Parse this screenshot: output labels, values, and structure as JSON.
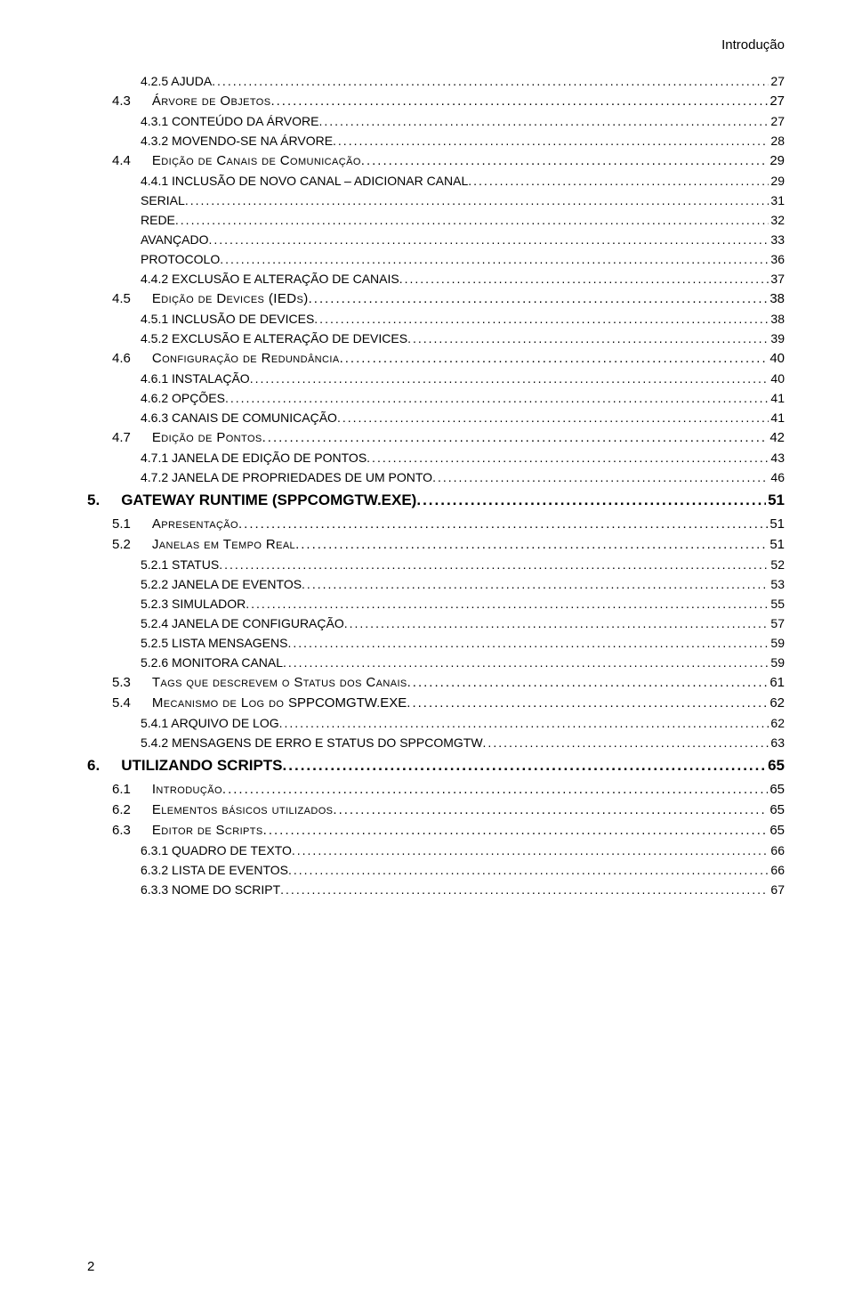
{
  "header": "Introdução",
  "footer_page": "2",
  "leader_glyph": ".",
  "entries": [
    {
      "level": 3,
      "label": "4.2.5 AJUDA",
      "page": "27"
    },
    {
      "level": 2,
      "num": "4.3",
      "text": "Árvore de Objetos",
      "page": "27"
    },
    {
      "level": 3,
      "label": "4.3.1 CONTEÚDO DA ÁRVORE",
      "page": "27"
    },
    {
      "level": 3,
      "label": "4.3.2 MOVENDO-SE NA ÁRVORE",
      "page": "28"
    },
    {
      "level": 2,
      "num": "4.4",
      "text": "Edição de Canais de Comunicação",
      "page": "29"
    },
    {
      "level": 3,
      "label": "4.4.1 INCLUSÃO DE NOVO CANAL – ADICIONAR CANAL",
      "page": "29"
    },
    {
      "level": 3,
      "label": "SERIAL",
      "page": "31"
    },
    {
      "level": 3,
      "label": "REDE",
      "page": "32"
    },
    {
      "level": 3,
      "label": "AVANÇADO",
      "page": "33"
    },
    {
      "level": 3,
      "label": "PROTOCOLO",
      "page": "36"
    },
    {
      "level": 3,
      "label": "4.4.2 EXCLUSÃO E ALTERAÇÃO DE CANAIS",
      "page": "37"
    },
    {
      "level": 2,
      "num": "4.5",
      "text": "Edição de Devices (IEDs)",
      "page": "38"
    },
    {
      "level": 3,
      "label": "4.5.1 INCLUSÃO DE DEVICES",
      "page": "38"
    },
    {
      "level": 3,
      "label": "4.5.2 EXCLUSÃO E ALTERAÇÃO DE DEVICES",
      "page": "39"
    },
    {
      "level": 2,
      "num": "4.6",
      "text": "Configuração de Redundância",
      "page": "40"
    },
    {
      "level": 3,
      "label": "4.6.1 INSTALAÇÃO",
      "page": "40"
    },
    {
      "level": 3,
      "label": "4.6.2 OPÇÕES",
      "page": "41"
    },
    {
      "level": 3,
      "label": "4.6.3 CANAIS DE COMUNICAÇÃO",
      "page": "41"
    },
    {
      "level": 2,
      "num": "4.7",
      "text": "Edição de Pontos",
      "page": "42"
    },
    {
      "level": 3,
      "label": "4.7.1 JANELA DE EDIÇÃO DE PONTOS",
      "page": "43"
    },
    {
      "level": 3,
      "label": "4.7.2 JANELA DE PROPRIEDADES DE UM PONTO",
      "page": "46"
    },
    {
      "level": 1,
      "num": "5.",
      "text": "GATEWAY RUNTIME (SPPCOMGTW.EXE)",
      "page": "51"
    },
    {
      "level": 2,
      "num": "5.1",
      "text": "Apresentação",
      "page": "51"
    },
    {
      "level": 2,
      "num": "5.2",
      "text": "Janelas em Tempo Real",
      "page": "51"
    },
    {
      "level": 3,
      "label": "5.2.1 STATUS",
      "page": "52"
    },
    {
      "level": 3,
      "label": "5.2.2 JANELA DE EVENTOS",
      "page": "53"
    },
    {
      "level": 3,
      "label": "5.2.3 SIMULADOR",
      "page": "55"
    },
    {
      "level": 3,
      "label": "5.2.4 JANELA DE CONFIGURAÇÃO",
      "page": "57"
    },
    {
      "level": 3,
      "label": "5.2.5 LISTA MENSAGENS",
      "page": "59"
    },
    {
      "level": 3,
      "label": "5.2.6 MONITORA CANAL",
      "page": "59"
    },
    {
      "level": 2,
      "num": "5.3",
      "text": "Tags que descrevem o Status dos Canais",
      "page": "61"
    },
    {
      "level": 2,
      "num": "5.4",
      "text": "Mecanismo de Log do ",
      "plain_suffix": "SPPCOMGTW.EXE",
      "page": "62"
    },
    {
      "level": 3,
      "label": "5.4.1 ARQUIVO DE LOG",
      "page": "62"
    },
    {
      "level": 3,
      "label": "5.4.2 MENSAGENS DE ERRO E STATUS DO SPPCOMGTW",
      "page": "63"
    },
    {
      "level": 1,
      "num": "6.",
      "text": "UTILIZANDO SCRIPTS",
      "page": "65"
    },
    {
      "level": 2,
      "num": "6.1",
      "text": "Introdução",
      "page": "65"
    },
    {
      "level": 2,
      "num": "6.2",
      "text": "Elementos básicos utilizados",
      "page": "65"
    },
    {
      "level": 2,
      "num": "6.3",
      "text": "Editor de Scripts",
      "page": "65"
    },
    {
      "level": 3,
      "label": "6.3.1 QUADRO DE TEXTO",
      "page": "66"
    },
    {
      "level": 3,
      "label": "6.3.2 LISTA DE EVENTOS",
      "page": "66"
    },
    {
      "level": 3,
      "label": "6.3.3 NOME DO SCRIPT",
      "page": "67"
    }
  ]
}
